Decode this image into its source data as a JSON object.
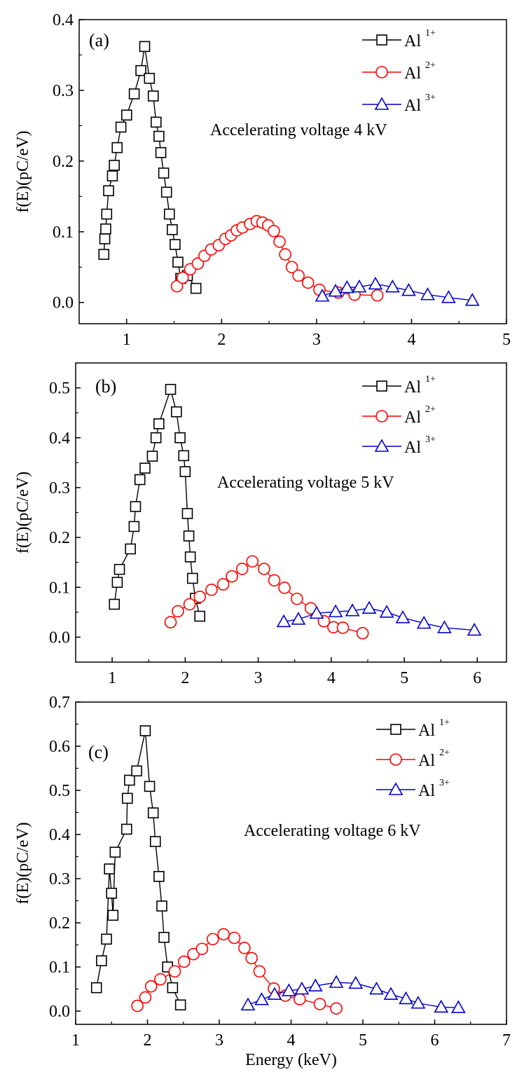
{
  "colors": {
    "Al1": "#000000",
    "Al2": "#ff0000",
    "Al3": "#0000cc"
  },
  "chart_data": [
    {
      "type": "line",
      "panel_label": "(a)",
      "annotation": "Accelerating voltage 4 kV",
      "xlabel": "",
      "ylabel": "f(E)(pC/eV)",
      "xlim": [
        0.5,
        5
      ],
      "ylim": [
        -0.03,
        0.4
      ],
      "xticks": [
        1,
        2,
        3,
        4,
        5
      ],
      "yticks": [
        0.0,
        0.1,
        0.2,
        0.3,
        0.4
      ],
      "xtick_labels": [
        "1",
        "2",
        "3",
        "4",
        "5"
      ],
      "ytick_labels": [
        "0.0",
        "0.1",
        "0.2",
        "0.3",
        "0.4"
      ],
      "legend_position": "top-right",
      "series": [
        {
          "name": "Al",
          "sup": "1+",
          "color": "Al1",
          "marker": "square",
          "x": [
            0.76,
            0.77,
            0.78,
            0.79,
            0.81,
            0.85,
            0.87,
            0.9,
            0.94,
            1.0,
            1.08,
            1.15,
            1.19,
            1.24,
            1.28,
            1.31,
            1.34,
            1.36,
            1.39,
            1.42,
            1.45,
            1.48,
            1.51,
            1.54,
            1.57,
            1.64,
            1.73
          ],
          "y": [
            0.068,
            0.09,
            0.104,
            0.125,
            0.158,
            0.179,
            0.194,
            0.219,
            0.248,
            0.265,
            0.295,
            0.328,
            0.362,
            0.317,
            0.292,
            0.255,
            0.235,
            0.212,
            0.183,
            0.156,
            0.125,
            0.103,
            0.082,
            0.057,
            0.034,
            0.038,
            0.02
          ]
        },
        {
          "name": "Al",
          "sup": "2+",
          "color": "Al2",
          "marker": "circle",
          "x": [
            1.53,
            1.59,
            1.67,
            1.75,
            1.82,
            1.89,
            1.97,
            2.04,
            2.1,
            2.16,
            2.22,
            2.3,
            2.37,
            2.43,
            2.49,
            2.55,
            2.61,
            2.67,
            2.74,
            2.81,
            2.91,
            3.03,
            3.23,
            3.4,
            3.64
          ],
          "y": [
            0.023,
            0.035,
            0.047,
            0.055,
            0.066,
            0.075,
            0.081,
            0.09,
            0.095,
            0.102,
            0.106,
            0.111,
            0.115,
            0.113,
            0.109,
            0.101,
            0.086,
            0.068,
            0.05,
            0.038,
            0.028,
            0.018,
            0.014,
            0.011,
            0.01
          ]
        },
        {
          "name": "Al",
          "sup": "3+",
          "color": "Al3",
          "marker": "triangle",
          "x": [
            3.06,
            3.2,
            3.32,
            3.45,
            3.62,
            3.8,
            3.97,
            4.17,
            4.39,
            4.64
          ],
          "y": [
            0.009,
            0.016,
            0.021,
            0.022,
            0.026,
            0.022,
            0.017,
            0.011,
            0.007,
            0.003
          ]
        }
      ]
    },
    {
      "type": "line",
      "panel_label": "(b)",
      "annotation": "Accelerating voltage 5 kV",
      "xlabel": "",
      "ylabel": "f(E)(pC/eV)",
      "xlim": [
        0.5,
        6.4
      ],
      "ylim": [
        -0.05,
        0.55
      ],
      "xticks": [
        1,
        2,
        3,
        4,
        5,
        6
      ],
      "yticks": [
        0.0,
        0.1,
        0.2,
        0.3,
        0.4,
        0.5
      ],
      "xtick_labels": [
        "1",
        "2",
        "3",
        "4",
        "5",
        "6"
      ],
      "ytick_labels": [
        "0.0",
        "0.1",
        "0.2",
        "0.3",
        "0.4",
        "0.5"
      ],
      "legend_position": "top-right",
      "series": [
        {
          "name": "Al",
          "sup": "1+",
          "color": "Al1",
          "marker": "square",
          "x": [
            1.03,
            1.07,
            1.1,
            1.25,
            1.3,
            1.32,
            1.38,
            1.45,
            1.55,
            1.6,
            1.64,
            1.8,
            1.88,
            1.93,
            1.98,
            2.0,
            2.03,
            2.05,
            2.07,
            2.1,
            2.14,
            2.2
          ],
          "y": [
            0.066,
            0.11,
            0.136,
            0.177,
            0.222,
            0.262,
            0.316,
            0.339,
            0.363,
            0.4,
            0.428,
            0.497,
            0.452,
            0.4,
            0.364,
            0.332,
            0.248,
            0.203,
            0.161,
            0.118,
            0.078,
            0.042
          ]
        },
        {
          "name": "Al",
          "sup": "2+",
          "color": "Al2",
          "marker": "circle",
          "x": [
            1.8,
            1.9,
            2.06,
            2.2,
            2.36,
            2.52,
            2.64,
            2.78,
            2.92,
            3.08,
            3.22,
            3.36,
            3.53,
            3.72,
            3.9,
            4.03,
            4.16,
            4.43
          ],
          "y": [
            0.03,
            0.052,
            0.066,
            0.081,
            0.095,
            0.106,
            0.122,
            0.137,
            0.152,
            0.137,
            0.114,
            0.099,
            0.077,
            0.058,
            0.032,
            0.02,
            0.019,
            0.008
          ]
        },
        {
          "name": "Al",
          "sup": "3+",
          "color": "Al3",
          "marker": "triangle",
          "x": [
            3.35,
            3.55,
            3.8,
            4.06,
            4.29,
            4.52,
            4.76,
            4.98,
            5.27,
            5.55,
            5.96
          ],
          "y": [
            0.031,
            0.036,
            0.048,
            0.051,
            0.053,
            0.058,
            0.05,
            0.039,
            0.028,
            0.019,
            0.014
          ]
        }
      ]
    },
    {
      "type": "line",
      "panel_label": "(c)",
      "annotation": "Accelerating voltage 6 kV",
      "xlabel": "Energy (keV)",
      "ylabel": "f(E)(pC/eV)",
      "xlim": [
        1,
        7
      ],
      "ylim": [
        -0.03,
        0.7
      ],
      "xticks": [
        1,
        2,
        3,
        4,
        5,
        6,
        7
      ],
      "yticks": [
        0.0,
        0.1,
        0.2,
        0.3,
        0.4,
        0.5,
        0.6,
        0.7
      ],
      "xtick_labels": [
        "1",
        "2",
        "3",
        "4",
        "5",
        "6",
        "7"
      ],
      "ytick_labels": [
        "0.0",
        "0.1",
        "0.2",
        "0.3",
        "0.4",
        "0.5",
        "0.6",
        "0.7"
      ],
      "legend_position": "top-right",
      "series": [
        {
          "name": "Al",
          "sup": "1+",
          "color": "Al1",
          "marker": "square",
          "x": [
            1.29,
            1.36,
            1.43,
            1.47,
            1.5,
            1.52,
            1.55,
            1.71,
            1.72,
            1.75,
            1.85,
            1.97,
            2.03,
            2.08,
            2.11,
            2.16,
            2.2,
            2.23,
            2.28,
            2.35,
            2.46
          ],
          "y": [
            0.053,
            0.114,
            0.163,
            0.322,
            0.267,
            0.217,
            0.36,
            0.412,
            0.482,
            0.523,
            0.544,
            0.635,
            0.509,
            0.449,
            0.384,
            0.305,
            0.238,
            0.167,
            0.1,
            0.053,
            0.014
          ]
        },
        {
          "name": "Al",
          "sup": "2+",
          "color": "Al2",
          "marker": "circle",
          "x": [
            1.86,
            1.97,
            2.05,
            2.18,
            2.38,
            2.51,
            2.64,
            2.76,
            2.91,
            3.06,
            3.21,
            3.35,
            3.45,
            3.56,
            3.76,
            3.92,
            4.12,
            4.4,
            4.63
          ],
          "y": [
            0.012,
            0.031,
            0.056,
            0.072,
            0.09,
            0.112,
            0.129,
            0.141,
            0.163,
            0.174,
            0.166,
            0.143,
            0.12,
            0.09,
            0.051,
            0.035,
            0.027,
            0.016,
            0.006
          ]
        },
        {
          "name": "Al",
          "sup": "3+",
          "color": "Al3",
          "marker": "triangle",
          "x": [
            3.4,
            3.59,
            3.77,
            3.97,
            4.15,
            4.34,
            4.63,
            4.9,
            5.19,
            5.39,
            5.6,
            5.77,
            6.09,
            6.33
          ],
          "y": [
            0.014,
            0.026,
            0.038,
            0.046,
            0.05,
            0.057,
            0.065,
            0.063,
            0.05,
            0.038,
            0.028,
            0.018,
            0.009,
            0.008
          ]
        }
      ]
    }
  ]
}
